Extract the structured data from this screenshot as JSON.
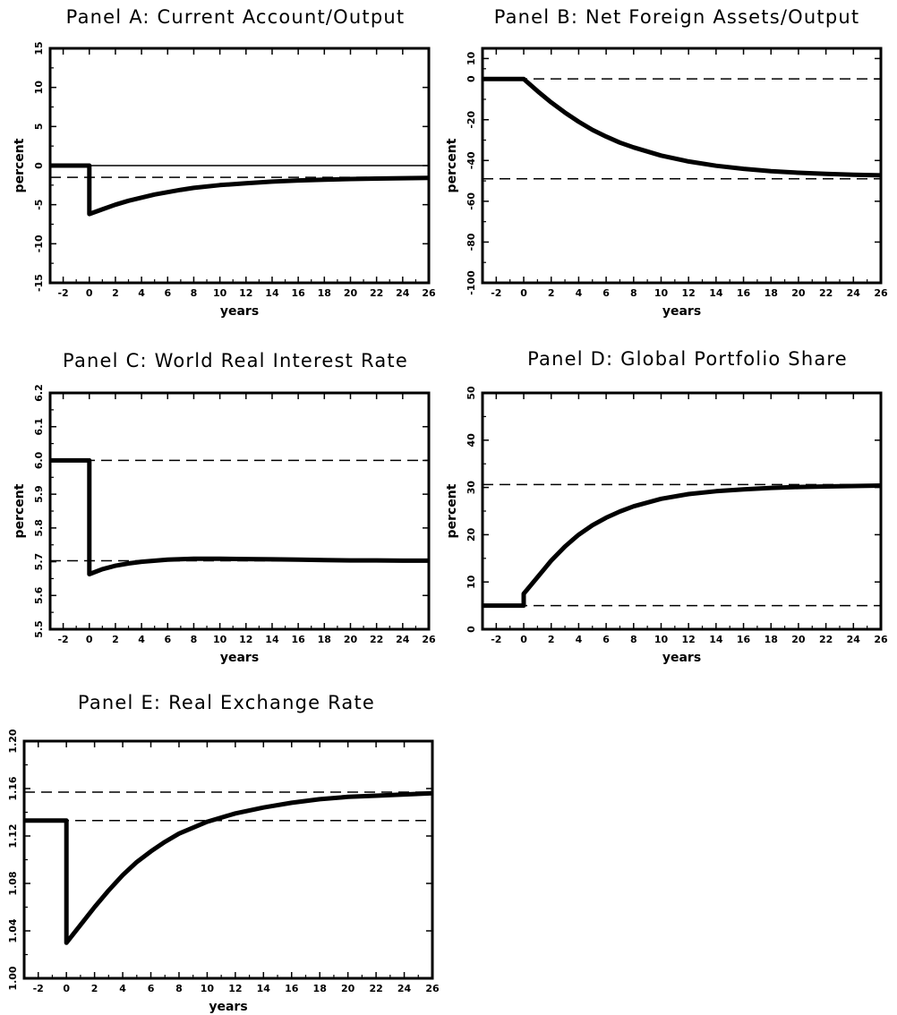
{
  "chart_data": [
    {
      "id": "A",
      "type": "line",
      "title": "Panel A: Current Account/Output",
      "xlabel": "years",
      "ylabel": "percent",
      "xlim": [
        -3,
        26
      ],
      "ylim": [
        -15,
        15
      ],
      "xticks": [
        -2,
        0,
        2,
        4,
        6,
        8,
        10,
        12,
        14,
        16,
        18,
        20,
        22,
        24,
        26
      ],
      "yticks": [
        -15,
        -10,
        -5,
        0,
        5,
        10,
        15
      ],
      "ytick_labels": [
        "-15",
        "-10",
        "-5",
        "0",
        "5",
        "10",
        "15"
      ],
      "solid_reference_lines": [
        0
      ],
      "dashed_reference_lines": [
        -1.5
      ],
      "series": [
        {
          "x": [
            -3,
            0,
            0,
            1,
            2,
            3,
            4,
            5,
            6,
            7,
            8,
            10,
            12,
            14,
            16,
            18,
            20,
            22,
            24,
            26
          ],
          "values": [
            0,
            0,
            -6.2,
            -5.6,
            -5.0,
            -4.5,
            -4.1,
            -3.7,
            -3.4,
            -3.1,
            -2.85,
            -2.5,
            -2.25,
            -2.05,
            -1.9,
            -1.8,
            -1.72,
            -1.66,
            -1.62,
            -1.58
          ]
        }
      ]
    },
    {
      "id": "B",
      "type": "line",
      "title": "Panel B: Net Foreign Assets/Output",
      "xlabel": "years",
      "ylabel": "percent",
      "xlim": [
        -3,
        26
      ],
      "ylim": [
        -100,
        15
      ],
      "xticks": [
        -2,
        0,
        2,
        4,
        6,
        8,
        10,
        12,
        14,
        16,
        18,
        20,
        22,
        24,
        26
      ],
      "yticks": [
        -100,
        -80,
        -60,
        -40,
        -20,
        0,
        10
      ],
      "ytick_labels": [
        "-100",
        "-80",
        "-60",
        "-40",
        "-20",
        "0",
        "10"
      ],
      "solid_reference_lines": [],
      "dashed_reference_lines": [
        0,
        -49
      ],
      "series": [
        {
          "x": [
            -3,
            0,
            1,
            2,
            3,
            4,
            5,
            6,
            7,
            8,
            10,
            12,
            14,
            16,
            18,
            20,
            22,
            24,
            26
          ],
          "values": [
            0,
            0,
            -6,
            -11.5,
            -16.5,
            -21,
            -25,
            -28.3,
            -31.2,
            -33.6,
            -37.6,
            -40.5,
            -42.6,
            -44.1,
            -45.2,
            -46,
            -46.6,
            -47,
            -47.3
          ]
        }
      ]
    },
    {
      "id": "C",
      "type": "line",
      "title": "Panel C: World Real Interest Rate",
      "xlabel": "years",
      "ylabel": "percent",
      "xlim": [
        -3,
        26
      ],
      "ylim": [
        5.5,
        6.2
      ],
      "xticks": [
        -2,
        0,
        2,
        4,
        6,
        8,
        10,
        12,
        14,
        16,
        18,
        20,
        22,
        24,
        26
      ],
      "yticks": [
        5.5,
        5.6,
        5.7,
        5.8,
        5.9,
        6.0,
        6.1,
        6.2
      ],
      "ytick_labels": [
        "5.5",
        "5.6",
        "5.7",
        "5.8",
        "5.9",
        "6.0",
        "6.1",
        "6.2"
      ],
      "solid_reference_lines": [],
      "dashed_reference_lines": [
        6.0,
        5.703
      ],
      "series": [
        {
          "x": [
            -3,
            0,
            0,
            1,
            2,
            3,
            4,
            6,
            8,
            10,
            12,
            14,
            16,
            18,
            20,
            22,
            24,
            26
          ],
          "values": [
            6.0,
            6.0,
            5.663,
            5.678,
            5.688,
            5.695,
            5.7,
            5.706,
            5.709,
            5.709,
            5.708,
            5.707,
            5.706,
            5.705,
            5.704,
            5.704,
            5.703,
            5.703
          ]
        }
      ]
    },
    {
      "id": "D",
      "type": "line",
      "title": "Panel D: Global Portfolio Share",
      "xlabel": "years",
      "ylabel": "percent",
      "xlim": [
        -3,
        26
      ],
      "ylim": [
        0,
        50
      ],
      "xticks": [
        -2,
        0,
        2,
        4,
        6,
        8,
        10,
        12,
        14,
        16,
        18,
        20,
        22,
        24,
        26
      ],
      "yticks": [
        0,
        10,
        20,
        30,
        40,
        50
      ],
      "ytick_labels": [
        "0",
        "10",
        "20",
        "30",
        "40",
        "50"
      ],
      "solid_reference_lines": [],
      "dashed_reference_lines": [
        30.6,
        5
      ],
      "series": [
        {
          "x": [
            -3,
            0,
            0,
            1,
            2,
            3,
            4,
            5,
            6,
            7,
            8,
            10,
            12,
            14,
            16,
            18,
            20,
            22,
            24,
            26
          ],
          "values": [
            5,
            5,
            7.5,
            11,
            14.5,
            17.5,
            20,
            22,
            23.6,
            24.9,
            26,
            27.6,
            28.6,
            29.2,
            29.6,
            29.9,
            30.1,
            30.2,
            30.3,
            30.4
          ]
        }
      ]
    },
    {
      "id": "E",
      "type": "line",
      "title": "Panel E: Real Exchange Rate",
      "xlabel": "years",
      "ylabel": "",
      "xlim": [
        -3,
        26
      ],
      "ylim": [
        1.0,
        1.2
      ],
      "xticks": [
        -2,
        0,
        2,
        4,
        6,
        8,
        10,
        12,
        14,
        16,
        18,
        20,
        22,
        24,
        26
      ],
      "yticks": [
        1.0,
        1.04,
        1.08,
        1.12,
        1.16,
        1.2
      ],
      "ytick_labels": [
        "1.00",
        "1.04",
        "1.08",
        "1.12",
        "1.16",
        "1.20"
      ],
      "solid_reference_lines": [],
      "dashed_reference_lines": [
        1.157,
        1.133
      ],
      "series": [
        {
          "x": [
            -3,
            0,
            0,
            1,
            2,
            3,
            4,
            5,
            6,
            7,
            8,
            10,
            12,
            14,
            16,
            18,
            20,
            22,
            24,
            26
          ],
          "values": [
            1.133,
            1.133,
            1.03,
            1.045,
            1.06,
            1.074,
            1.087,
            1.098,
            1.107,
            1.115,
            1.122,
            1.132,
            1.139,
            1.144,
            1.148,
            1.151,
            1.153,
            1.154,
            1.155,
            1.156
          ]
        }
      ]
    }
  ]
}
